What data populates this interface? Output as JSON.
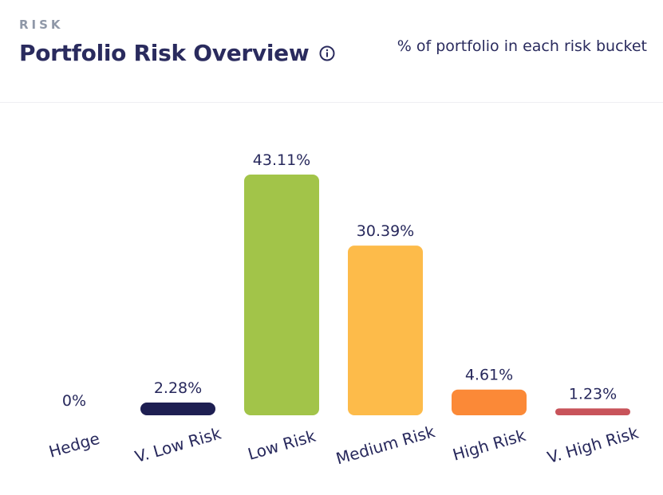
{
  "header": {
    "eyebrow": "RISK",
    "title": "Portfolio Risk Overview",
    "subtitle": "% of portfolio in each risk bucket"
  },
  "icons": {
    "info": "info-icon"
  },
  "chart_data": {
    "type": "bar",
    "categories": [
      "Hedge",
      "V. Low Risk",
      "Low Risk",
      "Medium Risk",
      "High Risk",
      "V. High Risk"
    ],
    "values": [
      0,
      2.28,
      43.11,
      30.39,
      4.61,
      1.23
    ],
    "value_labels": [
      "0%",
      "2.28%",
      "43.11%",
      "30.39%",
      "4.61%",
      "1.23%"
    ],
    "colors": [
      "#1e1f52",
      "#1e1f52",
      "#a2c449",
      "#fdbb4a",
      "#fb8937",
      "#c8535a"
    ],
    "ylim": [
      0,
      43.11
    ],
    "grid": false,
    "legend": "none"
  }
}
